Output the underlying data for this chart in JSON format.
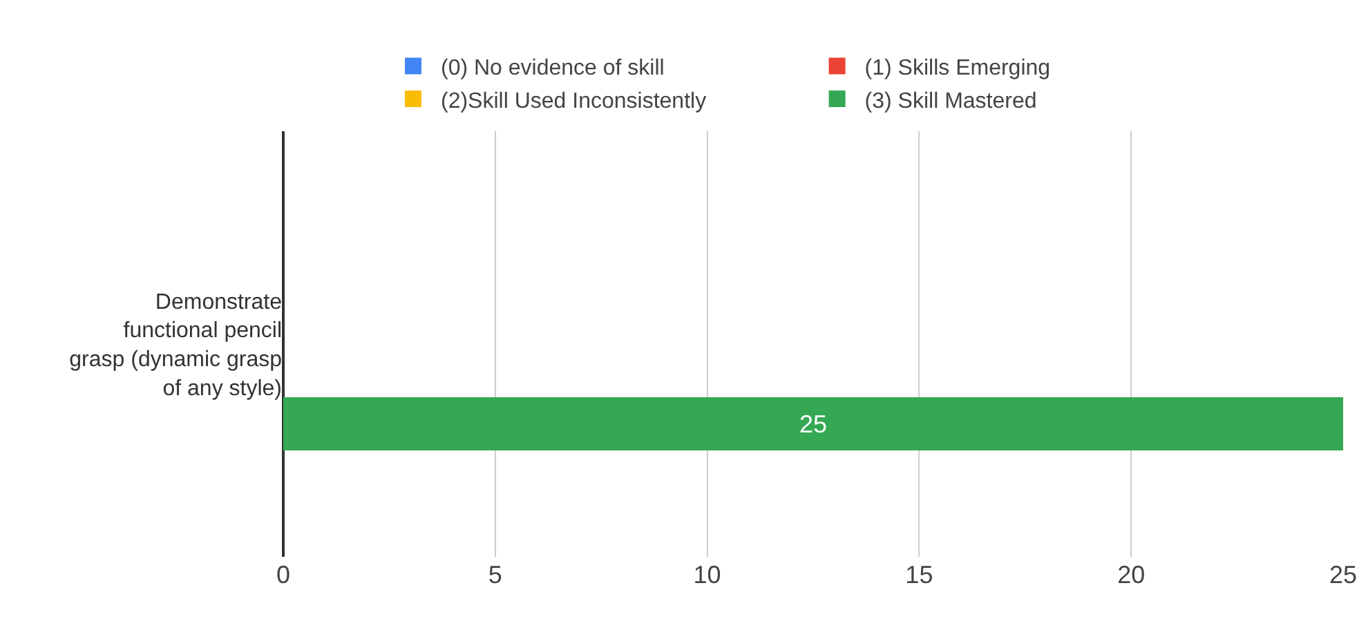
{
  "chart_data": {
    "type": "bar",
    "orientation": "horizontal",
    "categories": [
      "Demonstrate functional pencil grasp (dynamic grasp of any style)"
    ],
    "series": [
      {
        "name": "(0) No evidence of skill",
        "color": "#4285f4",
        "values": [
          0
        ],
        "value_labels": [
          null
        ]
      },
      {
        "name": "(1) Skills Emerging",
        "color": "#ea4335",
        "values": [
          0
        ],
        "value_labels": [
          null
        ]
      },
      {
        "name": "(2)Skill Used Inconsistently",
        "color": "#fbbc04",
        "values": [
          0
        ],
        "value_labels": [
          null
        ]
      },
      {
        "name": "(3) Skill Mastered",
        "color": "#34a853",
        "values": [
          25
        ],
        "value_labels": [
          "25"
        ]
      }
    ],
    "xlim": [
      0,
      25
    ],
    "xticks": [
      0,
      5,
      10,
      15,
      20,
      25
    ],
    "grid": "x",
    "legend": "top"
  }
}
